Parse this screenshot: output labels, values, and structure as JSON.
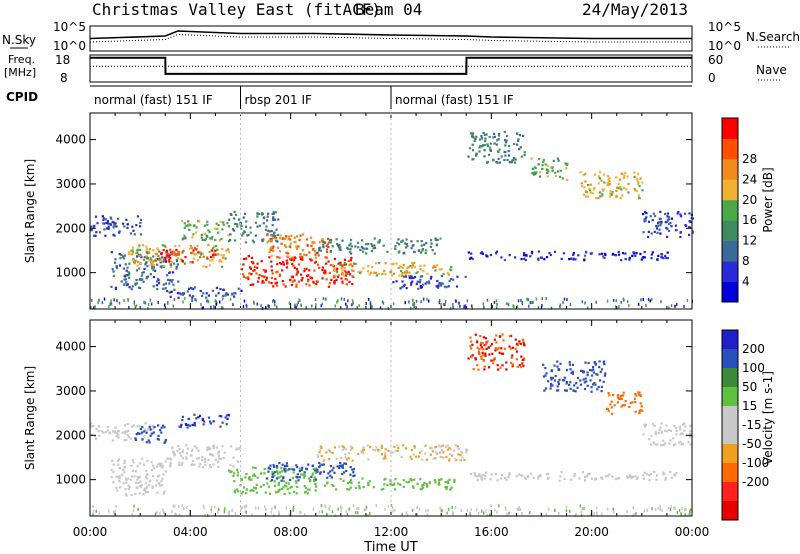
{
  "header": {
    "station": "Christmas Valley East (fitACF)",
    "beam": "Beam 04",
    "date": "24/May/2013"
  },
  "noise_panel": {
    "left_label": "N.Sky",
    "right_label": "N.Search",
    "left_ticks": [
      "10^5",
      "10^0"
    ],
    "right_ticks": [
      "10^5",
      "10^0"
    ]
  },
  "freq_panel": {
    "left_label_1": "Freq.",
    "left_label_2": "[MHz]",
    "left_ticks": [
      "18",
      "8"
    ],
    "right_ticks": [
      "60",
      "0"
    ],
    "right_label": "Nave"
  },
  "cpid_panel": {
    "label": "CPID",
    "segments": [
      {
        "text": "normal (fast) 151 IF",
        "start_h": 0,
        "end_h": 6
      },
      {
        "text": "rbsp 201 IF",
        "start_h": 6,
        "end_h": 12
      },
      {
        "text": "normal (fast) 151 IF",
        "start_h": 12,
        "end_h": 24
      }
    ]
  },
  "colors": {
    "power_scale": [
      "#0000d8",
      "#2a2ad8",
      "#3a6a9a",
      "#3f8a60",
      "#4aa84a",
      "#f0b030",
      "#f08c1c",
      "#ff5000",
      "#ff0000"
    ],
    "velocity_scale": [
      "#2020c8",
      "#2a50c0",
      "#3a8a3a",
      "#60c040",
      "#c8c8c8",
      "#c8c8c8",
      "#f0a020",
      "#ff6a00",
      "#ff2020",
      "#e80000"
    ]
  },
  "chart_data": [
    {
      "type": "line",
      "title": "N.Sky / N.Search",
      "x": [
        0,
        3,
        3.5,
        6,
        9,
        12,
        15,
        16,
        20,
        24
      ],
      "y_log": [
        2.5,
        3,
        4,
        3.5,
        3.5,
        3.2,
        3,
        2.8,
        2.5,
        2.5
      ],
      "ylim_log": [
        0,
        5
      ]
    },
    {
      "type": "line",
      "title": "Freq.",
      "x": [
        0,
        3,
        3.01,
        15,
        15.01,
        24
      ],
      "freq_mhz": [
        17,
        17,
        11,
        11,
        17,
        17
      ],
      "ylim": [
        8,
        18
      ],
      "nave": [
        35,
        35,
        35,
        35,
        35,
        35
      ]
    },
    {
      "type": "heatmap",
      "quantity": "Power",
      "ylabel": "Slant Range [km]",
      "colorbar_label": "Power [dB]",
      "colorbar_ticks": [
        4,
        8,
        12,
        16,
        20,
        24,
        28
      ],
      "yticks": [
        1000,
        2000,
        3000,
        4000
      ],
      "ylim": [
        180,
        4600
      ],
      "xlim": [
        0,
        24
      ],
      "regions": [
        {
          "t0": 0.0,
          "t1": 2.0,
          "r0": 1850,
          "r1": 2300,
          "value": 8
        },
        {
          "t0": 0.8,
          "t1": 3.5,
          "r0": 650,
          "r1": 1500,
          "value": 10
        },
        {
          "t0": 1.5,
          "t1": 5.5,
          "r0": 1150,
          "r1": 1650,
          "value": 20
        },
        {
          "t0": 2.5,
          "t1": 5.0,
          "r0": 1250,
          "r1": 1550,
          "value": 28
        },
        {
          "t0": 3.5,
          "t1": 5.5,
          "r0": 1750,
          "r1": 2200,
          "value": 16
        },
        {
          "t0": 3.0,
          "t1": 6.0,
          "r0": 450,
          "r1": 700,
          "value": 8
        },
        {
          "t0": 5.5,
          "t1": 7.5,
          "r0": 1700,
          "r1": 2400,
          "value": 12
        },
        {
          "t0": 6.0,
          "t1": 10.5,
          "r0": 700,
          "r1": 1400,
          "value": 28
        },
        {
          "t0": 7.0,
          "t1": 9.5,
          "r0": 1350,
          "r1": 1900,
          "value": 24
        },
        {
          "t0": 9.5,
          "t1": 14.5,
          "r0": 950,
          "r1": 1250,
          "value": 20
        },
        {
          "t0": 9.0,
          "t1": 14.0,
          "r0": 1450,
          "r1": 1800,
          "value": 12
        },
        {
          "t0": 12.0,
          "t1": 15.0,
          "r0": 650,
          "r1": 950,
          "value": 8
        },
        {
          "t0": 15.0,
          "t1": 17.3,
          "r0": 3500,
          "r1": 4200,
          "value": 12
        },
        {
          "t0": 17.5,
          "t1": 19.0,
          "r0": 3100,
          "r1": 3600,
          "value": 16
        },
        {
          "t0": 19.5,
          "t1": 22.0,
          "r0": 2700,
          "r1": 3300,
          "value": 20
        },
        {
          "t0": 22.0,
          "t1": 24.0,
          "r0": 1800,
          "r1": 2400,
          "value": 8
        },
        {
          "t0": 15.0,
          "t1": 23.0,
          "r0": 1300,
          "r1": 1500,
          "value": 6
        }
      ]
    },
    {
      "type": "heatmap",
      "quantity": "Velocity",
      "ylabel": "Slant Range [km]",
      "colorbar_label": "Velocity [m s-1]",
      "colorbar_ticks": [
        200,
        100,
        50,
        15,
        -15,
        -50,
        -100,
        -200
      ],
      "yticks": [
        1000,
        2000,
        3000,
        4000
      ],
      "ylim": [
        180,
        4600
      ],
      "xlim": [
        0,
        24
      ],
      "xticks": [
        "00:00",
        "04:00",
        "08:00",
        "12:00",
        "16:00",
        "20:00",
        "00:00"
      ],
      "xlabel": "Time UT",
      "regions": [
        {
          "t0": 0.0,
          "t1": 2.5,
          "r0": 1900,
          "r1": 2300,
          "value": 0
        },
        {
          "t0": 0.8,
          "t1": 3.0,
          "r0": 650,
          "r1": 1500,
          "value": 0
        },
        {
          "t0": 1.7,
          "t1": 3.0,
          "r0": 1850,
          "r1": 2250,
          "value": 150
        },
        {
          "t0": 3.0,
          "t1": 6.0,
          "r0": 1300,
          "r1": 1800,
          "value": 0
        },
        {
          "t0": 3.5,
          "t1": 5.5,
          "r0": 2200,
          "r1": 2500,
          "value": 200
        },
        {
          "t0": 5.5,
          "t1": 9.0,
          "r0": 700,
          "r1": 1300,
          "value": 30
        },
        {
          "t0": 7.0,
          "t1": 10.5,
          "r0": 1000,
          "r1": 1400,
          "value": 150
        },
        {
          "t0": 9.0,
          "t1": 15.0,
          "r0": 1450,
          "r1": 1800,
          "value": -50
        },
        {
          "t0": 9.0,
          "t1": 14.5,
          "r0": 800,
          "r1": 1050,
          "value": 30
        },
        {
          "t0": 15.0,
          "t1": 17.3,
          "r0": 3500,
          "r1": 4300,
          "value": -200
        },
        {
          "t0": 18.0,
          "t1": 20.5,
          "r0": 3000,
          "r1": 3700,
          "value": 150
        },
        {
          "t0": 20.5,
          "t1": 22.0,
          "r0": 2500,
          "r1": 3000,
          "value": -150
        },
        {
          "t0": 22.0,
          "t1": 24.0,
          "r0": 1800,
          "r1": 2300,
          "value": 0
        },
        {
          "t0": 15.0,
          "t1": 23.5,
          "r0": 1000,
          "r1": 1200,
          "value": 0
        }
      ]
    }
  ]
}
